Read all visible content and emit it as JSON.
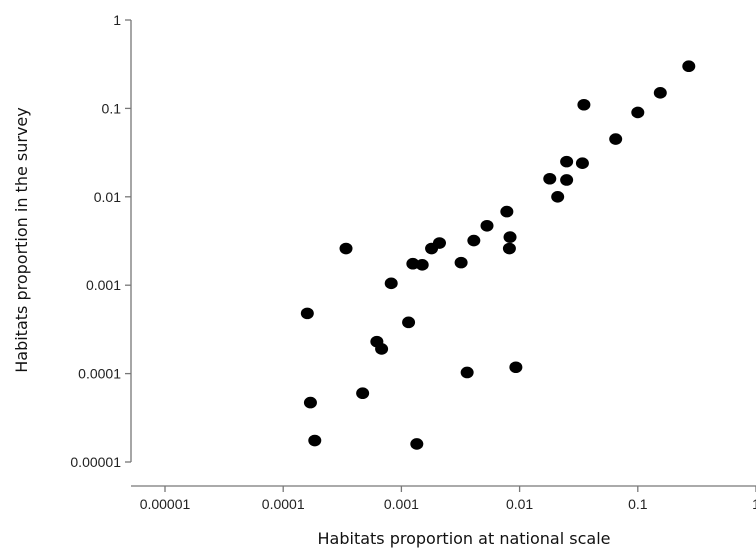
{
  "chart_data": {
    "type": "scatter",
    "title": "",
    "xlabel": "Habitats proportion at national scale",
    "ylabel": "Habitats proportion in the survey",
    "x_scale": "log",
    "y_scale": "log",
    "xlim": [
      1e-05,
      1
    ],
    "ylim": [
      1e-05,
      1
    ],
    "x_ticks": [
      1e-05,
      0.0001,
      0.001,
      0.01,
      0.1,
      1
    ],
    "x_tick_labels": [
      "0.00001",
      "0.0001",
      "0.001",
      "0.01",
      "0.1",
      "1"
    ],
    "y_ticks": [
      1e-05,
      0.0001,
      0.001,
      0.01,
      0.1,
      1
    ],
    "y_tick_labels": [
      "0.00001",
      "0.0001",
      "0.001",
      "0.01",
      "0.1",
      "1"
    ],
    "grid": false,
    "marker_color": "#000000",
    "points": [
      {
        "x": 0.27,
        "y": 0.3
      },
      {
        "x": 0.155,
        "y": 0.15
      },
      {
        "x": 0.1,
        "y": 0.09
      },
      {
        "x": 0.065,
        "y": 0.045
      },
      {
        "x": 0.035,
        "y": 0.11
      },
      {
        "x": 0.034,
        "y": 0.024
      },
      {
        "x": 0.025,
        "y": 0.025
      },
      {
        "x": 0.025,
        "y": 0.0155
      },
      {
        "x": 0.018,
        "y": 0.016
      },
      {
        "x": 0.021,
        "y": 0.01
      },
      {
        "x": 0.0078,
        "y": 0.0068
      },
      {
        "x": 0.0083,
        "y": 0.0035
      },
      {
        "x": 0.0082,
        "y": 0.0026
      },
      {
        "x": 0.0053,
        "y": 0.0047
      },
      {
        "x": 0.0041,
        "y": 0.0032
      },
      {
        "x": 0.0032,
        "y": 0.0018
      },
      {
        "x": 0.0021,
        "y": 0.003
      },
      {
        "x": 0.0018,
        "y": 0.0026
      },
      {
        "x": 0.0015,
        "y": 0.0017
      },
      {
        "x": 0.00125,
        "y": 0.00175
      },
      {
        "x": 0.00082,
        "y": 0.00105
      },
      {
        "x": 0.00034,
        "y": 0.0026
      },
      {
        "x": 0.00016,
        "y": 0.00048
      },
      {
        "x": 0.00115,
        "y": 0.00038
      },
      {
        "x": 0.00062,
        "y": 0.00023
      },
      {
        "x": 0.00068,
        "y": 0.00019
      },
      {
        "x": 0.0036,
        "y": 0.000103
      },
      {
        "x": 0.0093,
        "y": 0.000118
      },
      {
        "x": 0.00047,
        "y": 6e-05
      },
      {
        "x": 0.00017,
        "y": 4.7e-05
      },
      {
        "x": 0.000185,
        "y": 1.75e-05
      },
      {
        "x": 0.00135,
        "y": 1.6e-05
      }
    ]
  }
}
